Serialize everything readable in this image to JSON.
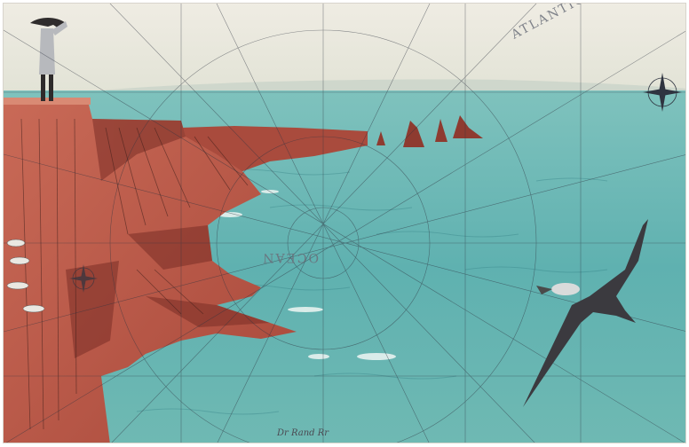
{
  "artwork": {
    "title": "",
    "map_label_top": "ATLANTIC OCEAN",
    "map_label_center": "OCEAN",
    "signature": "Dr Rand Rr",
    "subject": {
      "figure": "standing-person-on-cliff",
      "bird": "albatross-in-flight",
      "landscape": "red-sea-cliffs-and-sea-stacks",
      "overlay": "nautical-chart-rhumb-lines-and-compass-roses"
    },
    "palette": {
      "sky": "#e9e6da",
      "sea": "#5fb1b0",
      "sea_dark": "#3f8f92",
      "cliff": "#b8503f",
      "cliff_shadow": "#7a2e26",
      "line": "#2f3440",
      "bird": "#3b3a3f"
    }
  }
}
